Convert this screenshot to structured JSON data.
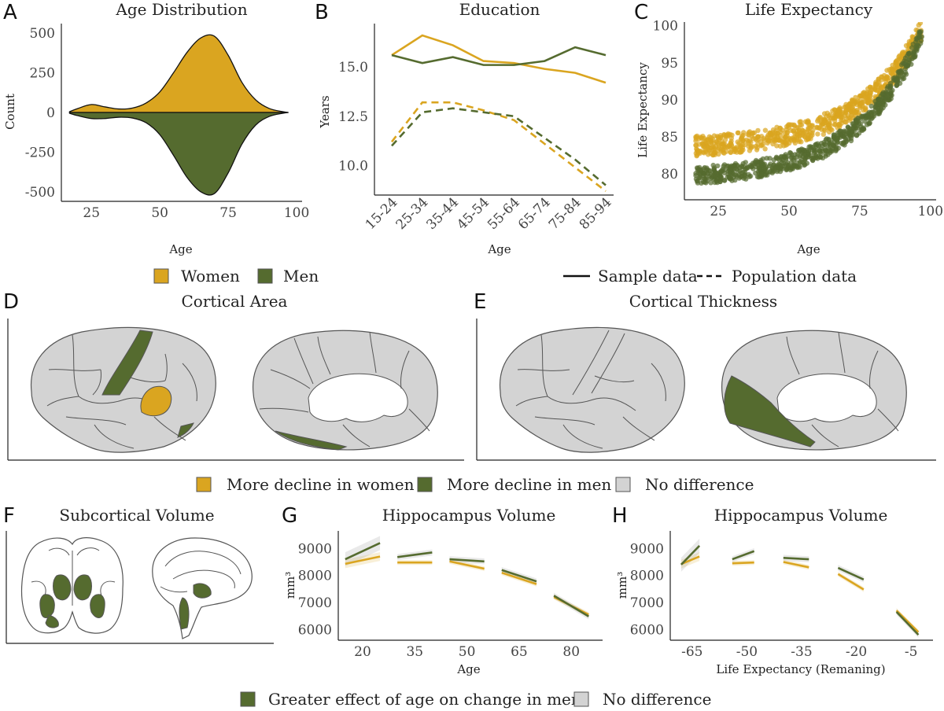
{
  "colors": {
    "women": "#DAA520",
    "men": "#556B2F",
    "nodiff": "#D3D3D3",
    "outline": "#555555"
  },
  "chart_data": [
    {
      "panel": "A",
      "type": "area",
      "title": "Age Distribution",
      "xlabel": "Age",
      "ylabel": "Count",
      "xlim": [
        14,
        102
      ],
      "ylim": [
        -560,
        560
      ],
      "xticks": [
        25,
        50,
        75,
        100
      ],
      "yticks": [
        500,
        250,
        0,
        -250,
        -500
      ],
      "ytick_labels": [
        "500",
        "250",
        "0",
        "-250",
        "-500"
      ],
      "x": [
        17,
        20,
        25,
        30,
        35,
        40,
        45,
        50,
        55,
        60,
        65,
        70,
        75,
        80,
        85,
        90,
        95,
        97
      ],
      "series": [
        {
          "name": "Women",
          "values": [
            5,
            25,
            50,
            35,
            22,
            28,
            60,
            130,
            250,
            380,
            470,
            480,
            360,
            190,
            80,
            25,
            5,
            0
          ]
        },
        {
          "name": "Men",
          "values": [
            -5,
            -20,
            -38,
            -38,
            -30,
            -35,
            -65,
            -140,
            -270,
            -410,
            -500,
            -510,
            -380,
            -200,
            -80,
            -25,
            -5,
            0
          ]
        }
      ]
    },
    {
      "panel": "B",
      "type": "line",
      "title": "Education",
      "xlabel": "Age",
      "ylabel": "Years",
      "ylim": [
        8.5,
        17.2
      ],
      "categories": [
        "15-24",
        "25-34",
        "35-44",
        "45-54",
        "55-64",
        "65-74",
        "75-84",
        "85-94"
      ],
      "yticks": [
        15.0,
        12.5,
        10.0
      ],
      "ytick_labels": [
        "15.0",
        "12.5",
        "10.0"
      ],
      "series": [
        {
          "name": "Women sample",
          "group": "Women",
          "style": "solid",
          "values": [
            15.6,
            16.6,
            16.1,
            15.3,
            15.2,
            14.9,
            14.7,
            14.2
          ]
        },
        {
          "name": "Men sample",
          "group": "Men",
          "style": "solid",
          "values": [
            15.6,
            15.2,
            15.5,
            15.1,
            15.1,
            15.3,
            16.0,
            15.6
          ]
        },
        {
          "name": "Women population",
          "group": "Women",
          "style": "dashed",
          "values": [
            11.2,
            13.2,
            13.2,
            12.8,
            12.3,
            11.1,
            9.9,
            8.7
          ]
        },
        {
          "name": "Men population",
          "group": "Men",
          "style": "dashed",
          "values": [
            11.0,
            12.7,
            12.9,
            12.7,
            12.5,
            11.4,
            10.3,
            9.0
          ]
        }
      ]
    },
    {
      "panel": "C",
      "type": "scatter",
      "title": "Life Expectancy",
      "xlabel": "Age",
      "ylabel": "Life Expectancy",
      "xlim": [
        13,
        102
      ],
      "ylim": [
        76.5,
        100.5
      ],
      "xticks": [
        25,
        50,
        75,
        100
      ],
      "yticks": [
        100,
        95,
        90,
        85,
        80
      ],
      "trend_note": "approx. exponential increase with age",
      "series": [
        {
          "name": "Women",
          "x_range": [
            17,
            97
          ],
          "start_value": 83.8,
          "end_value": 99.5
        },
        {
          "name": "Men",
          "x_range": [
            17,
            97
          ],
          "start_value": 79.8,
          "end_value": 99.0
        }
      ]
    },
    {
      "panel": "D",
      "type": "brain-map",
      "title": "Cortical Area",
      "regions": [
        {
          "region": "precentral",
          "status": "More decline in men"
        },
        {
          "region": "supramarginal",
          "status": "More decline in women"
        },
        {
          "region": "inferior temporal",
          "status": "More decline in men"
        },
        {
          "region": "medial temporal",
          "status": "More decline in men"
        }
      ]
    },
    {
      "panel": "E",
      "type": "brain-map",
      "title": "Cortical Thickness",
      "regions": [
        {
          "region": "medial occipital / lingual",
          "status": "More decline in men"
        }
      ]
    },
    {
      "panel": "F",
      "type": "brain-map",
      "title": "Subcortical Volume",
      "regions": [
        {
          "region": "thalamus",
          "status": "Greater effect of age on change in men"
        },
        {
          "region": "putamen",
          "status": "Greater effect of age on change in men"
        },
        {
          "region": "hippocampus",
          "status": "Greater effect of age on change in men"
        },
        {
          "region": "brainstem",
          "status": "Greater effect of age on change in men"
        }
      ]
    },
    {
      "panel": "G",
      "type": "line",
      "title": "Hippocampus Volume",
      "xlabel": "Age",
      "ylabel": "mm³",
      "xlim": [
        13,
        89
      ],
      "ylim": [
        5600,
        9650
      ],
      "xticks": [
        20,
        35,
        50,
        65,
        80
      ],
      "yticks": [
        9000,
        8000,
        7000,
        6000
      ],
      "segments": [
        {
          "x": [
            15,
            25
          ],
          "women": [
            8430,
            8700
          ],
          "men": [
            8600,
            9200
          ]
        },
        {
          "x": [
            30,
            40
          ],
          "women": [
            8480,
            8480
          ],
          "men": [
            8680,
            8850
          ]
        },
        {
          "x": [
            45,
            55
          ],
          "women": [
            8520,
            8250
          ],
          "men": [
            8600,
            8520
          ]
        },
        {
          "x": [
            60,
            70
          ],
          "women": [
            8100,
            7680
          ],
          "men": [
            8200,
            7780
          ]
        },
        {
          "x": [
            75,
            85
          ],
          "women": [
            7200,
            6550
          ],
          "men": [
            7250,
            6480
          ]
        }
      ]
    },
    {
      "panel": "H",
      "type": "line",
      "title": "Hippocampus Volume",
      "xlabel": "Life Expectancy (Remaning)",
      "ylabel": "mm³",
      "xlim": [
        -71,
        1
      ],
      "ylim": [
        5600,
        9650
      ],
      "xticks": [
        -65,
        -50,
        -35,
        -20,
        -5
      ],
      "yticks": [
        9000,
        8000,
        7000,
        6000
      ],
      "segments": [
        {
          "x": [
            -68,
            -63
          ],
          "women": [
            8420,
            8700
          ],
          "men": [
            8400,
            9100
          ]
        },
        {
          "x": [
            -54,
            -48
          ],
          "women": [
            8450,
            8480
          ],
          "men": [
            8600,
            8900
          ]
        },
        {
          "x": [
            -40,
            -33
          ],
          "women": [
            8500,
            8300
          ],
          "men": [
            8650,
            8600
          ]
        },
        {
          "x": [
            -25,
            -18
          ],
          "women": [
            8050,
            7480
          ],
          "men": [
            8280,
            7850
          ]
        },
        {
          "x": [
            -9,
            -3
          ],
          "women": [
            6700,
            5900
          ],
          "men": [
            6650,
            5800
          ]
        }
      ]
    }
  ],
  "legends": {
    "top_left": [
      {
        "label": "Women",
        "key": "women"
      },
      {
        "label": "Men",
        "key": "men"
      }
    ],
    "top_right": [
      {
        "label": "Sample data",
        "style": "solid"
      },
      {
        "label": "Population data",
        "style": "dashed"
      }
    ],
    "middle": [
      {
        "label": "More decline in women",
        "key": "women"
      },
      {
        "label": "More decline in men",
        "key": "men"
      },
      {
        "label": "No difference",
        "key": "nodiff"
      }
    ],
    "bottom": [
      {
        "label": "Greater effect of age on change in men",
        "key": "men"
      },
      {
        "label": "No difference",
        "key": "nodiff"
      }
    ]
  },
  "panel_letters": [
    "A",
    "B",
    "C",
    "D",
    "E",
    "F",
    "G",
    "H"
  ]
}
